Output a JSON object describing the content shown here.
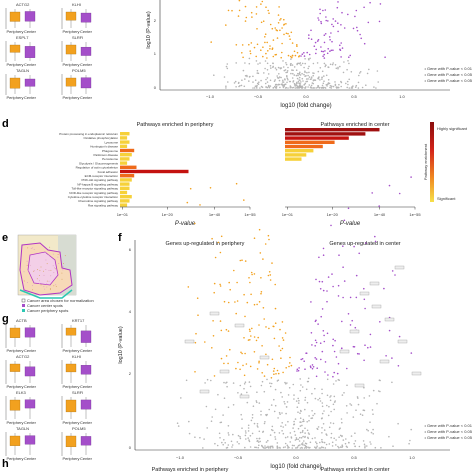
{
  "panels": {
    "d": "d",
    "e": "e",
    "f": "f",
    "g": "g",
    "h": "h"
  },
  "top_volcano": {
    "ylabel": "log10 (P-value)",
    "xlabel": "log10 (fold change)",
    "xticks": [
      "−1.0",
      "−0.5",
      "0.0",
      "0.5",
      "1.0"
    ],
    "yticks": [
      "2",
      "1",
      "0"
    ],
    "legend": [
      "• Gene with P-value < 0.01",
      "• Gene with P-value < 0.05",
      "• Gene with P-value < 0.05"
    ]
  },
  "top_boxplots": {
    "genes": [
      "ACTG2",
      "KLHI",
      "ESPL7",
      "SLRFI",
      "TAGLN",
      "POLM5"
    ],
    "groups": [
      "Periphery",
      "Center"
    ]
  },
  "pathways": {
    "periphery_title": "Pathways enriched in periphery",
    "center_title": "Pathways enriched in center",
    "xlabel": "P-value",
    "periphery_ticks": [
      "1e−01",
      "1e−20",
      "1e−40",
      "1e−55"
    ],
    "center_ticks": [
      "1e−01",
      "1e−20",
      "1e−40",
      "1e−55"
    ],
    "periphery_terms": [
      "Protein processing in endoplasmic reticulum",
      "Oxidative phosphorylation",
      "Lysosome",
      "Huntington's disease",
      "Phagosome",
      "Parkinson disease",
      "Peroxisome",
      "Glycolysis / Gluconeogenesis",
      "Regulation of actin cytoskeleton",
      "Focal adhesion",
      "ECM-receptor interaction",
      "PI3K-Akt signaling pathway",
      "NF-kappa B signaling pathway",
      "Toll-like receptor signaling pathway",
      "NOD-like receptor signaling pathway",
      "Cytokine-cytokine receptor interaction",
      "Chemokine signaling pathway",
      "Ras signaling pathway"
    ],
    "periphery_values": [
      4,
      3,
      4,
      3,
      6,
      5,
      4,
      3,
      7,
      29,
      6,
      5,
      4,
      4,
      3,
      5,
      4,
      3
    ],
    "center_values": [
      40,
      34,
      27,
      21,
      16,
      12,
      9,
      7
    ],
    "colorbar": {
      "top": "Highly significant",
      "bottom": "Significant",
      "label": "Pathway enrichment"
    }
  },
  "panel_e": {
    "legend": [
      "Cancer area chosen for normalization",
      "Cancer center spots",
      "Cancer periphery spots"
    ]
  },
  "panel_f": {
    "left_title": "Genes up-regulated in periphery",
    "right_title": "Genes up-regulated in center",
    "ylabel": "log10 (P-value)",
    "xlabel": "log10 (fold change)",
    "xticks": [
      "−1.0",
      "−0.5",
      "0.0",
      "0.5",
      "1.0"
    ],
    "yticks": [
      "6",
      "4",
      "2",
      "0"
    ],
    "legend": [
      "• Gene with P-value < 0.01",
      "• Gene with P-value < 0.05",
      "• Gene with P-value < 0.05"
    ]
  },
  "panel_g": {
    "genes": [
      "ACTB",
      "KRT17",
      "ACTG2",
      "KLHI",
      "ELK3",
      "SLRFI",
      "TAGLN",
      "POLM5"
    ],
    "groups": [
      "Periphery",
      "Center"
    ]
  },
  "panel_h": {
    "left_title": "Pathways enriched in periphery",
    "right_title": "Pathways enriched in center"
  },
  "colors": {
    "periphery": "#f2a11f",
    "center": "#a44fc9",
    "gray_point": "#b5b5b5",
    "bar_dark": "#c4120f",
    "bar_mid": "#ef6a1a",
    "bar_light": "#f6d13a"
  }
}
